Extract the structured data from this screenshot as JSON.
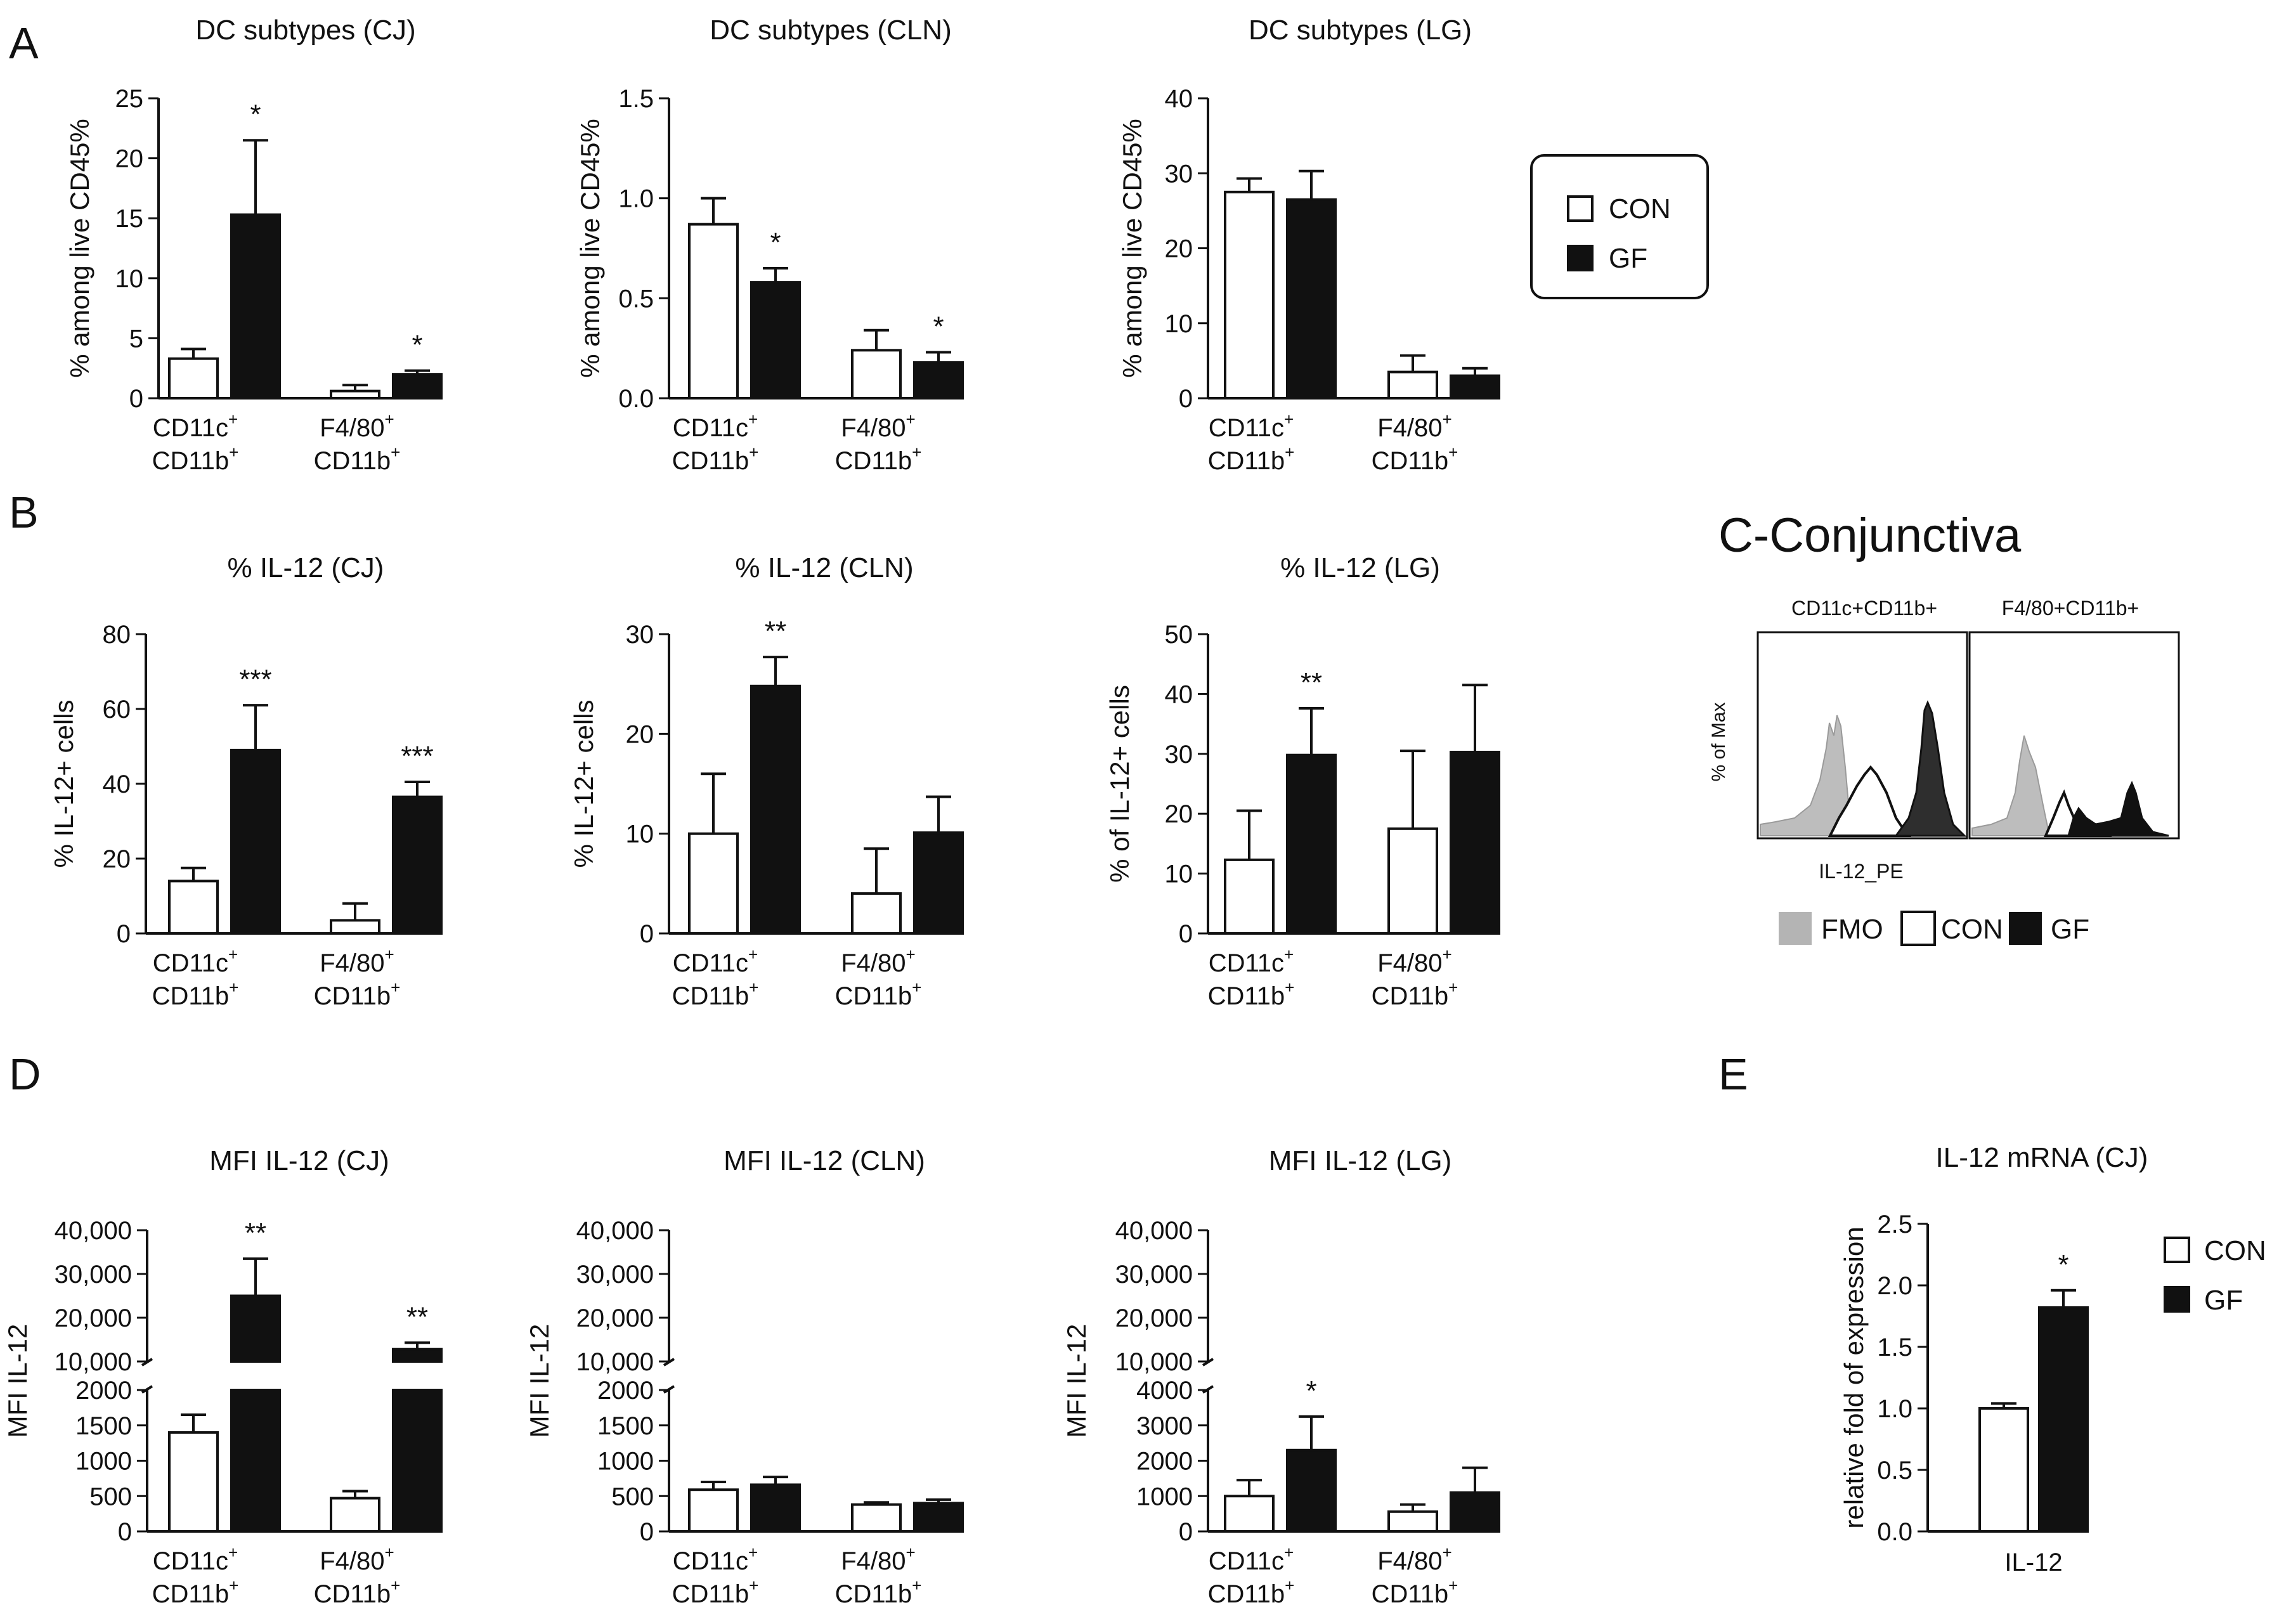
{
  "panel_labels": {
    "a": "A",
    "b": "B",
    "c": "C-Conjunctiva",
    "d": "D",
    "e": "E"
  },
  "legend": {
    "con": "CON",
    "gf": "GF"
  },
  "colors": {
    "con": "#ffffff",
    "gf": "#111111",
    "fmo": "#b4b4b4",
    "axis": "#111111"
  },
  "category_lines": {
    "cd11c": "CD11c",
    "f480": "F4/80",
    "cd11b": "CD11b",
    "sup": "+"
  },
  "flow": {
    "left_title": "CD11c+CD11b+",
    "right_title": "F4/80+CD11b+",
    "ylabel": "% of Max",
    "xlabel": "IL-12_PE",
    "legend": [
      "FMO",
      "CON",
      "GF"
    ]
  },
  "chart_data": [
    {
      "id": "A1",
      "type": "bar",
      "title": "DC subtypes (CJ)",
      "ylabel": "% among live CD45%",
      "ylim": [
        0,
        25
      ],
      "yticks": [
        "0",
        "5",
        "10",
        "15",
        "20",
        "25"
      ],
      "categories": [
        "CD11c+ CD11b+",
        "F4/80+ CD11b+"
      ],
      "series": [
        {
          "name": "CON",
          "values": [
            3.3,
            0.6
          ],
          "errors": [
            0.8,
            0.5
          ]
        },
        {
          "name": "GF",
          "values": [
            15.3,
            2.0
          ],
          "errors": [
            6.2,
            0.3
          ]
        }
      ],
      "annotations": [
        {
          "category": 0,
          "series": "GF",
          "text": "*"
        },
        {
          "category": 1,
          "series": "GF",
          "text": "*"
        }
      ]
    },
    {
      "id": "A2",
      "type": "bar",
      "title": "DC subtypes (CLN)",
      "ylabel": "% among live CD45%",
      "ylim": [
        0,
        1.5
      ],
      "yticks": [
        "0.0",
        "0.5",
        "1.0",
        "1.5"
      ],
      "categories": [
        "CD11c+ CD11b+",
        "F4/80+ CD11b+"
      ],
      "series": [
        {
          "name": "CON",
          "values": [
            0.87,
            0.24
          ],
          "errors": [
            0.13,
            0.1
          ]
        },
        {
          "name": "GF",
          "values": [
            0.58,
            0.18
          ],
          "errors": [
            0.07,
            0.05
          ]
        }
      ],
      "annotations": [
        {
          "category": 0,
          "series": "GF",
          "text": "*"
        },
        {
          "category": 1,
          "series": "GF",
          "text": "*"
        }
      ]
    },
    {
      "id": "A3",
      "type": "bar",
      "title": "DC subtypes  (LG)",
      "ylabel": "% among live CD45%",
      "ylim": [
        0,
        40
      ],
      "yticks": [
        "0",
        "10",
        "20",
        "30",
        "40"
      ],
      "categories": [
        "CD11c+ CD11b+",
        "F4/80+ CD11b+"
      ],
      "series": [
        {
          "name": "CON",
          "values": [
            27.5,
            3.5
          ],
          "errors": [
            1.8,
            2.2
          ]
        },
        {
          "name": "GF",
          "values": [
            26.5,
            3.0
          ],
          "errors": [
            3.8,
            1.0
          ]
        }
      ],
      "annotations": []
    },
    {
      "id": "B1",
      "type": "bar",
      "title": "% IL-12 (CJ)",
      "ylabel": "% IL-12+ cells",
      "ylim": [
        0,
        80
      ],
      "yticks": [
        "0",
        "20",
        "40",
        "60",
        "80"
      ],
      "categories": [
        "CD11c+ CD11b+",
        "F4/80+ CD11b+"
      ],
      "series": [
        {
          "name": "CON",
          "values": [
            14,
            3.5
          ],
          "errors": [
            3.5,
            4.5
          ]
        },
        {
          "name": "GF",
          "values": [
            49,
            36.5
          ],
          "errors": [
            12,
            4
          ]
        }
      ],
      "annotations": [
        {
          "category": 0,
          "series": "GF",
          "text": "***"
        },
        {
          "category": 1,
          "series": "GF",
          "text": "***"
        }
      ]
    },
    {
      "id": "B2",
      "type": "bar",
      "title": "% IL-12 (CLN)",
      "ylabel": "% IL-12+ cells",
      "ylim": [
        0,
        30
      ],
      "yticks": [
        "0",
        "10",
        "20",
        "30"
      ],
      "categories": [
        "CD11c+ CD11b+",
        "F4/80+ CD11b+"
      ],
      "series": [
        {
          "name": "CON",
          "values": [
            10,
            4
          ],
          "errors": [
            6,
            4.5
          ]
        },
        {
          "name": "GF",
          "values": [
            24.8,
            10.1
          ],
          "errors": [
            2.9,
            3.6
          ]
        }
      ],
      "annotations": [
        {
          "category": 0,
          "series": "GF",
          "text": "**"
        }
      ]
    },
    {
      "id": "B3",
      "type": "bar",
      "title": "% IL-12  (LG)",
      "ylabel": "% of IL-12+ cells",
      "ylim": [
        0,
        50
      ],
      "yticks": [
        "0",
        "10",
        "20",
        "30",
        "40",
        "50"
      ],
      "categories": [
        "CD11c+ CD11b+",
        "F4/80+ CD11b+"
      ],
      "series": [
        {
          "name": "CON",
          "values": [
            12.3,
            17.5
          ],
          "errors": [
            8.2,
            13
          ]
        },
        {
          "name": "GF",
          "values": [
            29.8,
            30.3
          ],
          "errors": [
            7.8,
            11.2
          ]
        }
      ],
      "annotations": [
        {
          "category": 0,
          "series": "GF",
          "text": "**"
        }
      ]
    },
    {
      "id": "D1",
      "type": "bar",
      "title": "MFI  IL-12 (CJ)",
      "ylabel": "MFI IL-12",
      "broken_axis": true,
      "ylim_lower": [
        0,
        2000
      ],
      "yticks_lower": [
        0,
        500,
        1000,
        1500,
        2000
      ],
      "ylim_upper": [
        10000,
        40000
      ],
      "yticks_upper": [
        10000,
        20000,
        30000,
        40000
      ],
      "tick_labels_lower": [
        "0",
        "500",
        "1000",
        "1500",
        "2000"
      ],
      "tick_labels_upper": [
        "10,000",
        "20,000",
        "30,000",
        "40,000"
      ],
      "categories": [
        "CD11c+ CD11b+",
        "F4/80+ CD11b+"
      ],
      "series": [
        {
          "name": "CON",
          "values": [
            1400,
            470
          ],
          "errors": [
            250,
            100
          ]
        },
        {
          "name": "GF",
          "values": [
            25000,
            12800
          ],
          "errors": [
            8500,
            1500
          ]
        }
      ],
      "annotations": [
        {
          "category": 0,
          "series": "GF",
          "text": "**"
        },
        {
          "category": 1,
          "series": "GF",
          "text": "**"
        }
      ]
    },
    {
      "id": "D2",
      "type": "bar",
      "title": "MFI  IL-12 (CLN)",
      "ylabel": "MFI IL-12",
      "broken_axis": true,
      "ylim_lower": [
        0,
        2000
      ],
      "yticks_lower": [
        0,
        500,
        1000,
        1500,
        2000
      ],
      "ylim_upper": [
        10000,
        40000
      ],
      "yticks_upper": [
        10000,
        20000,
        30000,
        40000
      ],
      "tick_labels_lower": [
        "0",
        "500",
        "1000",
        "1500",
        "2000"
      ],
      "tick_labels_upper": [
        "10,000",
        "20,000",
        "30,000",
        "40,000"
      ],
      "categories": [
        "CD11c+ CD11b+",
        "F4/80+ CD11b+"
      ],
      "series": [
        {
          "name": "CON",
          "values": [
            590,
            380
          ],
          "errors": [
            110,
            30
          ]
        },
        {
          "name": "GF",
          "values": [
            660,
            400
          ],
          "errors": [
            110,
            50
          ]
        }
      ],
      "annotations": []
    },
    {
      "id": "D3",
      "type": "bar",
      "title": "MFI  IL-12  (LG)",
      "ylabel": "MFI IL-12",
      "broken_axis": true,
      "ylim_lower": [
        0,
        4000
      ],
      "yticks_lower": [
        0,
        1000,
        2000,
        3000,
        4000
      ],
      "ylim_upper": [
        10000,
        40000
      ],
      "yticks_upper": [
        10000,
        20000,
        30000,
        40000
      ],
      "tick_labels_lower": [
        "0",
        "1000",
        "2000",
        "3000",
        "4000"
      ],
      "tick_labels_upper": [
        "10,000",
        "20,000",
        "30,000",
        "40,000"
      ],
      "categories": [
        "CD11c+ CD11b+",
        "F4/80+ CD11b+"
      ],
      "series": [
        {
          "name": "CON",
          "values": [
            1000,
            560
          ],
          "errors": [
            450,
            200
          ]
        },
        {
          "name": "GF",
          "values": [
            2300,
            1100
          ],
          "errors": [
            950,
            700
          ]
        }
      ],
      "annotations": [
        {
          "category": 0,
          "series": "GF",
          "text": "*"
        }
      ]
    },
    {
      "id": "E1",
      "type": "bar",
      "title": "IL-12 mRNA (CJ)",
      "ylabel": "relative fold of expression",
      "ylim": [
        0,
        2.5
      ],
      "yticks": [
        "0.0",
        "0.5",
        "1.0",
        "1.5",
        "2.0",
        "2.5"
      ],
      "categories": [
        "IL-12"
      ],
      "series": [
        {
          "name": "CON",
          "values": [
            1.0
          ],
          "errors": [
            0.04
          ]
        },
        {
          "name": "GF",
          "values": [
            1.82
          ],
          "errors": [
            0.14
          ]
        }
      ],
      "annotations": [
        {
          "category": 0,
          "series": "GF",
          "text": "*"
        }
      ]
    }
  ]
}
